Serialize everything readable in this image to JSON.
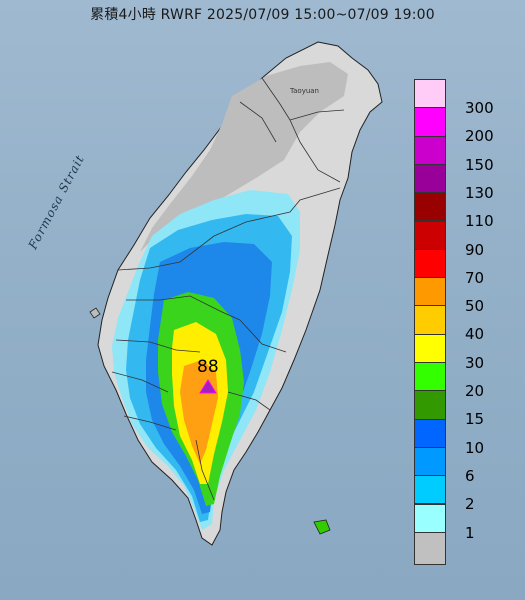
{
  "title": "累積4小時 RWRF 2025/07/09 15:00~07/09 19:00",
  "strait_label": "Formosa Strait",
  "city_label": "Taoyuan",
  "peak": {
    "value": "88",
    "marker": "triangle-marker-icon"
  },
  "legend": [
    {
      "label": "300",
      "color": "#ffccf7"
    },
    {
      "label": "200",
      "color": "#ff00ff"
    },
    {
      "label": "150",
      "color": "#cc00cc"
    },
    {
      "label": "130",
      "color": "#990099"
    },
    {
      "label": "110",
      "color": "#990000"
    },
    {
      "label": "90",
      "color": "#cc0000"
    },
    {
      "label": "70",
      "color": "#ff0000"
    },
    {
      "label": "50",
      "color": "#ff9900"
    },
    {
      "label": "40",
      "color": "#ffcc00"
    },
    {
      "label": "30",
      "color": "#ffff00"
    },
    {
      "label": "20",
      "color": "#33ff00"
    },
    {
      "label": "15",
      "color": "#339900"
    },
    {
      "label": "10",
      "color": "#0066ff"
    },
    {
      "label": "6",
      "color": "#0099ff"
    },
    {
      "label": "2",
      "color": "#00ccff"
    },
    {
      "label": "1",
      "color": "#99ffff"
    },
    {
      "label": "",
      "color": "#c0c0c0"
    }
  ]
}
